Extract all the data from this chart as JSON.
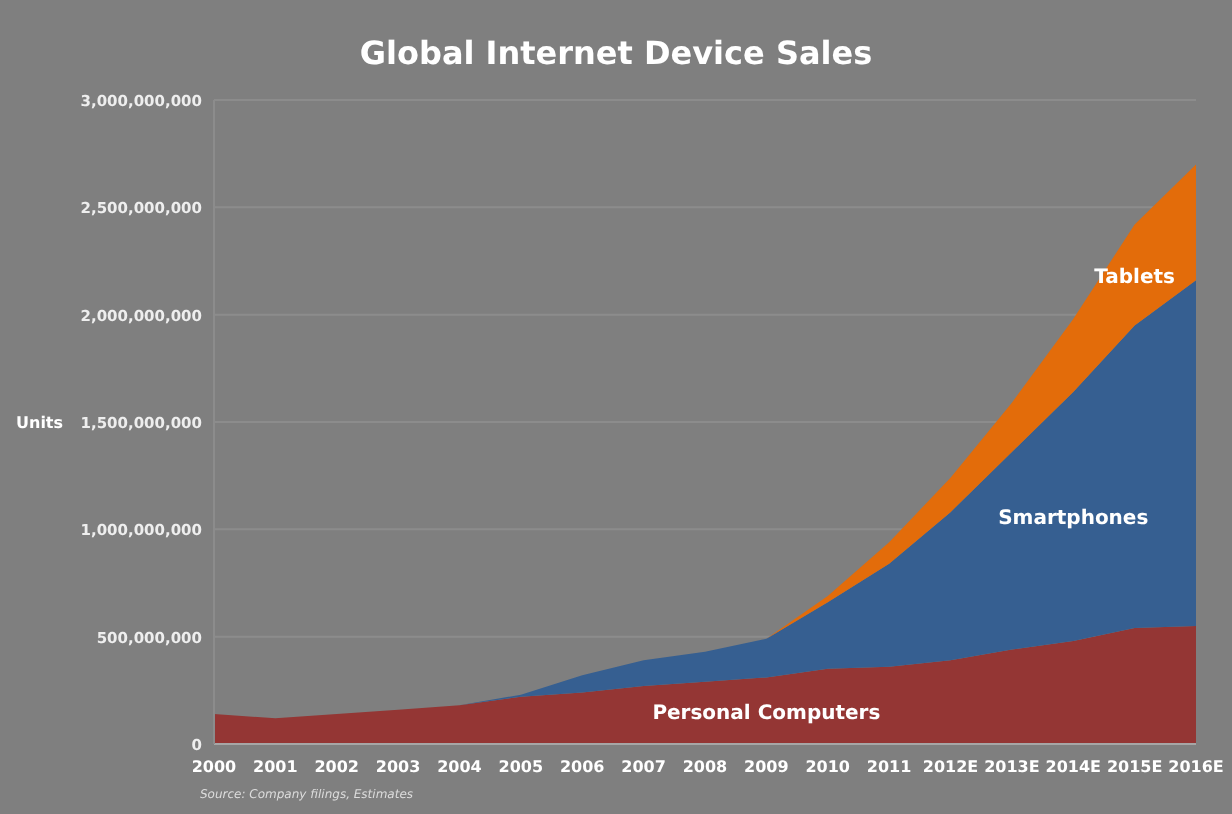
{
  "chart_data": {
    "type": "area",
    "stacked": true,
    "title": "Global Internet Device Sales",
    "ylabel": "Units",
    "categories": [
      "2000",
      "2001",
      "2002",
      "2003",
      "2004",
      "2005",
      "2006",
      "2007",
      "2008",
      "2009",
      "2010",
      "2011",
      "2012E",
      "2013E",
      "2014E",
      "2015E",
      "2016E"
    ],
    "series": [
      {
        "name": "Personal Computers",
        "color": "#943634",
        "values": [
          140000000,
          120000000,
          140000000,
          160000000,
          180000000,
          220000000,
          240000000,
          270000000,
          290000000,
          310000000,
          350000000,
          360000000,
          390000000,
          440000000,
          480000000,
          540000000,
          550000000
        ]
      },
      {
        "name": "Smartphones",
        "color": "#365f91",
        "values": [
          0,
          0,
          0,
          0,
          0,
          10000000,
          80000000,
          120000000,
          140000000,
          180000000,
          310000000,
          480000000,
          690000000,
          920000000,
          1160000000,
          1410000000,
          1610000000
        ]
      },
      {
        "name": "Tablets",
        "color": "#e36c0a",
        "values": [
          0,
          0,
          0,
          0,
          0,
          0,
          0,
          0,
          0,
          0,
          30000000,
          100000000,
          160000000,
          230000000,
          340000000,
          470000000,
          540000000
        ]
      }
    ],
    "ylim": [
      0,
      3000000000
    ],
    "yticks": [
      {
        "value": 0,
        "label": "0"
      },
      {
        "value": 500000000,
        "label": "500,000,000"
      },
      {
        "value": 1000000000,
        "label": "1,000,000,000"
      },
      {
        "value": 1500000000,
        "label": "1,500,000,000"
      },
      {
        "value": 2000000000,
        "label": "2,000,000,000"
      },
      {
        "value": 2500000000,
        "label": "2,500,000,000"
      },
      {
        "value": 3000000000,
        "label": "3,000,000,000"
      }
    ],
    "grid": "y",
    "annotations": [
      "Source: Company filings, Estimates"
    ]
  }
}
